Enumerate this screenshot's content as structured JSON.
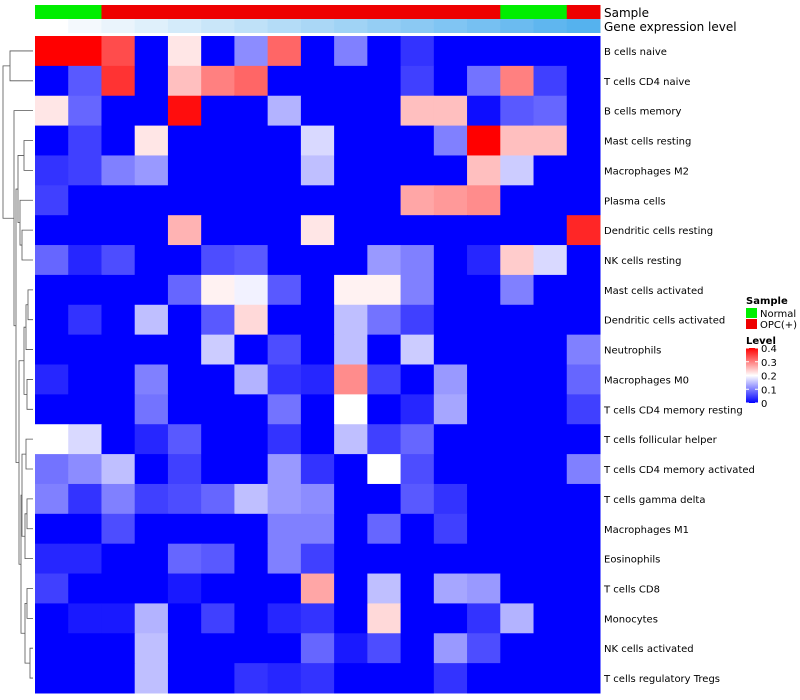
{
  "chart_data": {
    "type": "heatmap",
    "annotation_tracks": [
      {
        "name": "Sample",
        "values": [
          "Normal",
          "Normal",
          "OPC(+)",
          "OPC(+)",
          "OPC(+)",
          "OPC(+)",
          "OPC(+)",
          "OPC(+)",
          "OPC(+)",
          "OPC(+)",
          "OPC(+)",
          "OPC(+)",
          "OPC(+)",
          "OPC(+)",
          "Normal",
          "Normal",
          "OPC(+)"
        ]
      },
      {
        "name": "Gene expression level",
        "values": [
          1,
          2,
          3,
          4,
          5,
          6,
          7,
          8,
          9,
          10,
          11,
          12,
          13,
          14,
          15,
          16,
          17
        ],
        "colors": [
          "#ffffff",
          "#f4f9fd",
          "#eaf4fc",
          "#dff0fb",
          "#d4ebfa",
          "#c9e6f9",
          "#bfe1f8",
          "#b4dcf7",
          "#aad7f6",
          "#a0d3f5",
          "#95cef4",
          "#8bc9f3",
          "#80c5f3",
          "#76c0f2",
          "#6bbbf0",
          "#5fb6ef",
          "#55b2ee"
        ]
      }
    ],
    "legend": {
      "sample": {
        "title": "Sample",
        "items": [
          {
            "label": "Normal",
            "color": "#00ee00"
          },
          {
            "label": "OPC(+)",
            "color": "#ee0000"
          }
        ]
      },
      "level": {
        "title": "Level",
        "ticks": [
          "0.4",
          "0.3",
          "0.2",
          "0.1",
          "0"
        ],
        "tick_values": [
          0.4,
          0.3,
          0.2,
          0.1,
          0
        ]
      }
    },
    "color_scale": {
      "min": 0,
      "max": 0.4,
      "low": "#0000ff",
      "mid": "#ffffff",
      "high": "#ff0000"
    },
    "rows": [
      {
        "label": "B cells naive",
        "values": [
          0.4,
          0.4,
          0.34,
          0,
          0.22,
          0,
          0.11,
          0.32,
          0,
          0.1,
          0,
          0.04,
          0,
          0,
          0,
          0,
          0
        ]
      },
      {
        "label": "T cells CD4 naive",
        "values": [
          0,
          0.07,
          0.36,
          0,
          0.25,
          0.3,
          0.32,
          0,
          0,
          0,
          0,
          0.05,
          0,
          0.09,
          0.3,
          0.05,
          0
        ]
      },
      {
        "label": "B cells memory",
        "values": [
          0.22,
          0.08,
          0,
          0,
          0.39,
          0,
          0,
          0.14,
          0,
          0,
          0,
          0.25,
          0.25,
          0.01,
          0.07,
          0.08,
          0
        ]
      },
      {
        "label": "Mast cells resting",
        "values": [
          0,
          0.05,
          0,
          0.22,
          0,
          0,
          0,
          0,
          0.17,
          0,
          0,
          0,
          0.1,
          0.4,
          0.25,
          0.25,
          0
        ]
      },
      {
        "label": "Macrophages M2",
        "values": [
          0.04,
          0.05,
          0.1,
          0.12,
          0,
          0,
          0,
          0,
          0.15,
          0,
          0,
          0,
          0,
          0.25,
          0.16,
          0,
          0
        ]
      },
      {
        "label": "Plasma cells",
        "values": [
          0.05,
          0,
          0,
          0,
          0,
          0,
          0,
          0,
          0,
          0,
          0,
          0.27,
          0.28,
          0.29,
          0,
          0,
          0
        ]
      },
      {
        "label": "Dendritic cells resting",
        "values": [
          0,
          0,
          0,
          0,
          0.26,
          0,
          0,
          0,
          0.22,
          0,
          0,
          0,
          0,
          0,
          0,
          0,
          0.37
        ]
      },
      {
        "label": "NK cells resting",
        "values": [
          0.08,
          0.03,
          0.06,
          0,
          0,
          0.06,
          0.07,
          0,
          0,
          0,
          0.12,
          0.1,
          0,
          0.03,
          0.24,
          0.17,
          0
        ]
      },
      {
        "label": "Mast cells activated",
        "values": [
          0,
          0,
          0,
          0,
          0.08,
          0.21,
          0.19,
          0.07,
          0,
          0.21,
          0.21,
          0.1,
          0,
          0,
          0.1,
          0,
          0
        ]
      },
      {
        "label": "Dendritic cells activated",
        "values": [
          0,
          0.04,
          0,
          0.15,
          0,
          0.07,
          0.23,
          0,
          0,
          0.15,
          0.09,
          0.05,
          0,
          0,
          0,
          0,
          0
        ]
      },
      {
        "label": "Neutrophils",
        "values": [
          0,
          0,
          0,
          0,
          0,
          0.16,
          0,
          0.06,
          0,
          0.15,
          0,
          0.16,
          0,
          0,
          0,
          0,
          0.1
        ]
      },
      {
        "label": "Macrophages M0",
        "values": [
          0.03,
          0,
          0,
          0.1,
          0,
          0,
          0.14,
          0.04,
          0.03,
          0.29,
          0.05,
          0,
          0.12,
          0,
          0,
          0,
          0.08
        ]
      },
      {
        "label": "T cells CD4 memory resting",
        "values": [
          0,
          0,
          0,
          0.09,
          0,
          0,
          0,
          0.09,
          0,
          0.2,
          0,
          0.03,
          0.13,
          0,
          0,
          0,
          0.05
        ]
      },
      {
        "label": "T cells follicular helper",
        "values": [
          0.2,
          0.17,
          0,
          0.03,
          0.07,
          0,
          0,
          0.04,
          0,
          0.15,
          0.05,
          0.08,
          0,
          0,
          0,
          0,
          0
        ]
      },
      {
        "label": "T cells CD4 memory activated",
        "values": [
          0.09,
          0.11,
          0.15,
          0,
          0.05,
          0,
          0,
          0.12,
          0.04,
          0,
          0.2,
          0.06,
          0,
          0,
          0,
          0,
          0.1
        ]
      },
      {
        "label": "T cells gamma delta",
        "values": [
          0.1,
          0.04,
          0.1,
          0.05,
          0.06,
          0.08,
          0.15,
          0.12,
          0.11,
          0,
          0,
          0.07,
          0.04,
          0,
          0,
          0,
          0
        ]
      },
      {
        "label": "Macrophages M1",
        "values": [
          0,
          0,
          0.06,
          0,
          0,
          0,
          0,
          0.1,
          0.1,
          0,
          0.08,
          0,
          0.05,
          0,
          0,
          0,
          0
        ]
      },
      {
        "label": "Eosinophils",
        "values": [
          0.03,
          0.03,
          0,
          0,
          0.08,
          0.07,
          0,
          0.1,
          0.05,
          0,
          0,
          0,
          0,
          0,
          0,
          0,
          0
        ]
      },
      {
        "label": "T cells CD8",
        "values": [
          0.05,
          0,
          0,
          0,
          0.02,
          0,
          0,
          0,
          0.27,
          0,
          0.15,
          0,
          0.13,
          0.12,
          0,
          0,
          0
        ]
      },
      {
        "label": "Monocytes",
        "values": [
          0,
          0.02,
          0.02,
          0.14,
          0,
          0.05,
          0,
          0.03,
          0.04,
          0,
          0.23,
          0,
          0,
          0.04,
          0.14,
          0,
          0
        ]
      },
      {
        "label": "NK cells activated",
        "values": [
          0,
          0,
          0,
          0.15,
          0,
          0,
          0,
          0,
          0.08,
          0.02,
          0.06,
          0,
          0.12,
          0.06,
          0,
          0,
          0
        ]
      },
      {
        "label": "T cells regulatory  Tregs",
        "values": [
          0,
          0,
          0,
          0.15,
          0,
          0,
          0.04,
          0.03,
          0.04,
          0,
          0,
          0,
          0.04,
          0,
          0,
          0,
          0
        ]
      }
    ]
  }
}
